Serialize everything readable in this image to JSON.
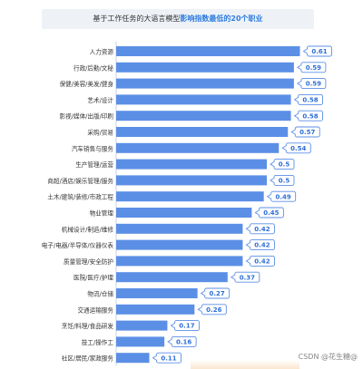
{
  "title": {
    "prefix": "基于工作任务的大语言模型",
    "highlight": "影响指数最低的20个职业"
  },
  "watermark": "CSDN @花生糖@",
  "colors": {
    "bar": "#5b8fe6",
    "callout_border": "#5b8fe6",
    "callout_text": "#2f6fd6",
    "title_bg": "#eef2f7",
    "highlight": "#2f7de1"
  },
  "chart_data": {
    "type": "bar",
    "orientation": "horizontal",
    "categories": [
      "人力资源",
      "行政/后勤/文秘",
      "保健/美容/美发/健身",
      "艺术/设计",
      "影视/媒体/出版/印刷",
      "采购/贸易",
      "汽车销售与服务",
      "生产管理/运营",
      "商超/酒店/娱乐管理/服务",
      "土木/建筑/装修/市政工程",
      "物业管理",
      "机械设计/制造/维修",
      "电子/电器/半导体/仪器仪表",
      "质量管理/安全防护",
      "医院/医疗/护理",
      "物流/仓储",
      "交通运输服务",
      "烹饪/料理/食品研发",
      "技工/操作工",
      "社区/居民/家政服务"
    ],
    "values": [
      0.61,
      0.59,
      0.59,
      0.58,
      0.58,
      0.57,
      0.54,
      0.5,
      0.5,
      0.49,
      0.45,
      0.42,
      0.42,
      0.42,
      0.37,
      0.27,
      0.26,
      0.17,
      0.16,
      0.11
    ],
    "value_labels": [
      "0.61",
      "0.59",
      "0.59",
      "0.58",
      "0.58",
      "0.57",
      "0.54",
      "0.5",
      "0.5",
      "0.49",
      "0.45",
      "0.42",
      "0.42",
      "0.42",
      "0.37",
      "0.27",
      "0.26",
      "0.17",
      "0.16",
      "0.11"
    ],
    "xlim": [
      0,
      0.65
    ],
    "grid": false,
    "legend": "none"
  }
}
